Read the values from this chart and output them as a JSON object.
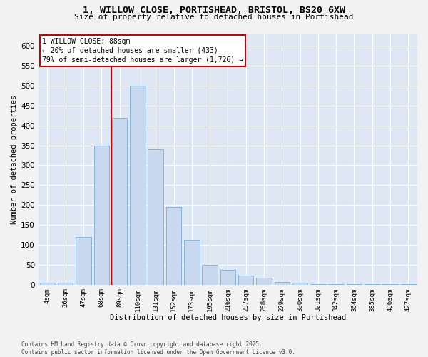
{
  "title_line1": "1, WILLOW CLOSE, PORTISHEAD, BRISTOL, BS20 6XW",
  "title_line2": "Size of property relative to detached houses in Portishead",
  "xlabel": "Distribution of detached houses by size in Portishead",
  "ylabel": "Number of detached properties",
  "footnote": "Contains HM Land Registry data © Crown copyright and database right 2025.\nContains public sector information licensed under the Open Government Licence v3.0.",
  "bar_labels": [
    "4sqm",
    "26sqm",
    "47sqm",
    "68sqm",
    "89sqm",
    "110sqm",
    "131sqm",
    "152sqm",
    "173sqm",
    "195sqm",
    "216sqm",
    "237sqm",
    "258sqm",
    "279sqm",
    "300sqm",
    "321sqm",
    "342sqm",
    "364sqm",
    "385sqm",
    "406sqm",
    "427sqm"
  ],
  "bar_values": [
    5,
    5,
    120,
    350,
    420,
    500,
    340,
    195,
    113,
    50,
    37,
    22,
    17,
    7,
    5,
    2,
    1,
    1,
    1,
    1,
    1
  ],
  "bar_color": "#c8d8ee",
  "bar_edge_color": "#7aadd4",
  "background_color": "#dde8f4",
  "grid_color": "#ffffff",
  "annotation_text": "1 WILLOW CLOSE: 88sqm\n← 20% of detached houses are smaller (433)\n79% of semi-detached houses are larger (1,726) →",
  "annotation_box_color": "#ffffff",
  "annotation_box_edge_color": "#cc0000",
  "vline_color": "#cc0000",
  "ylim": [
    0,
    630
  ],
  "yticks": [
    0,
    50,
    100,
    150,
    200,
    250,
    300,
    350,
    400,
    450,
    500,
    550,
    600
  ],
  "vline_x": 3.53,
  "fig_width": 6.0,
  "fig_height": 5.0,
  "fig_bg": "#f2f2f2"
}
